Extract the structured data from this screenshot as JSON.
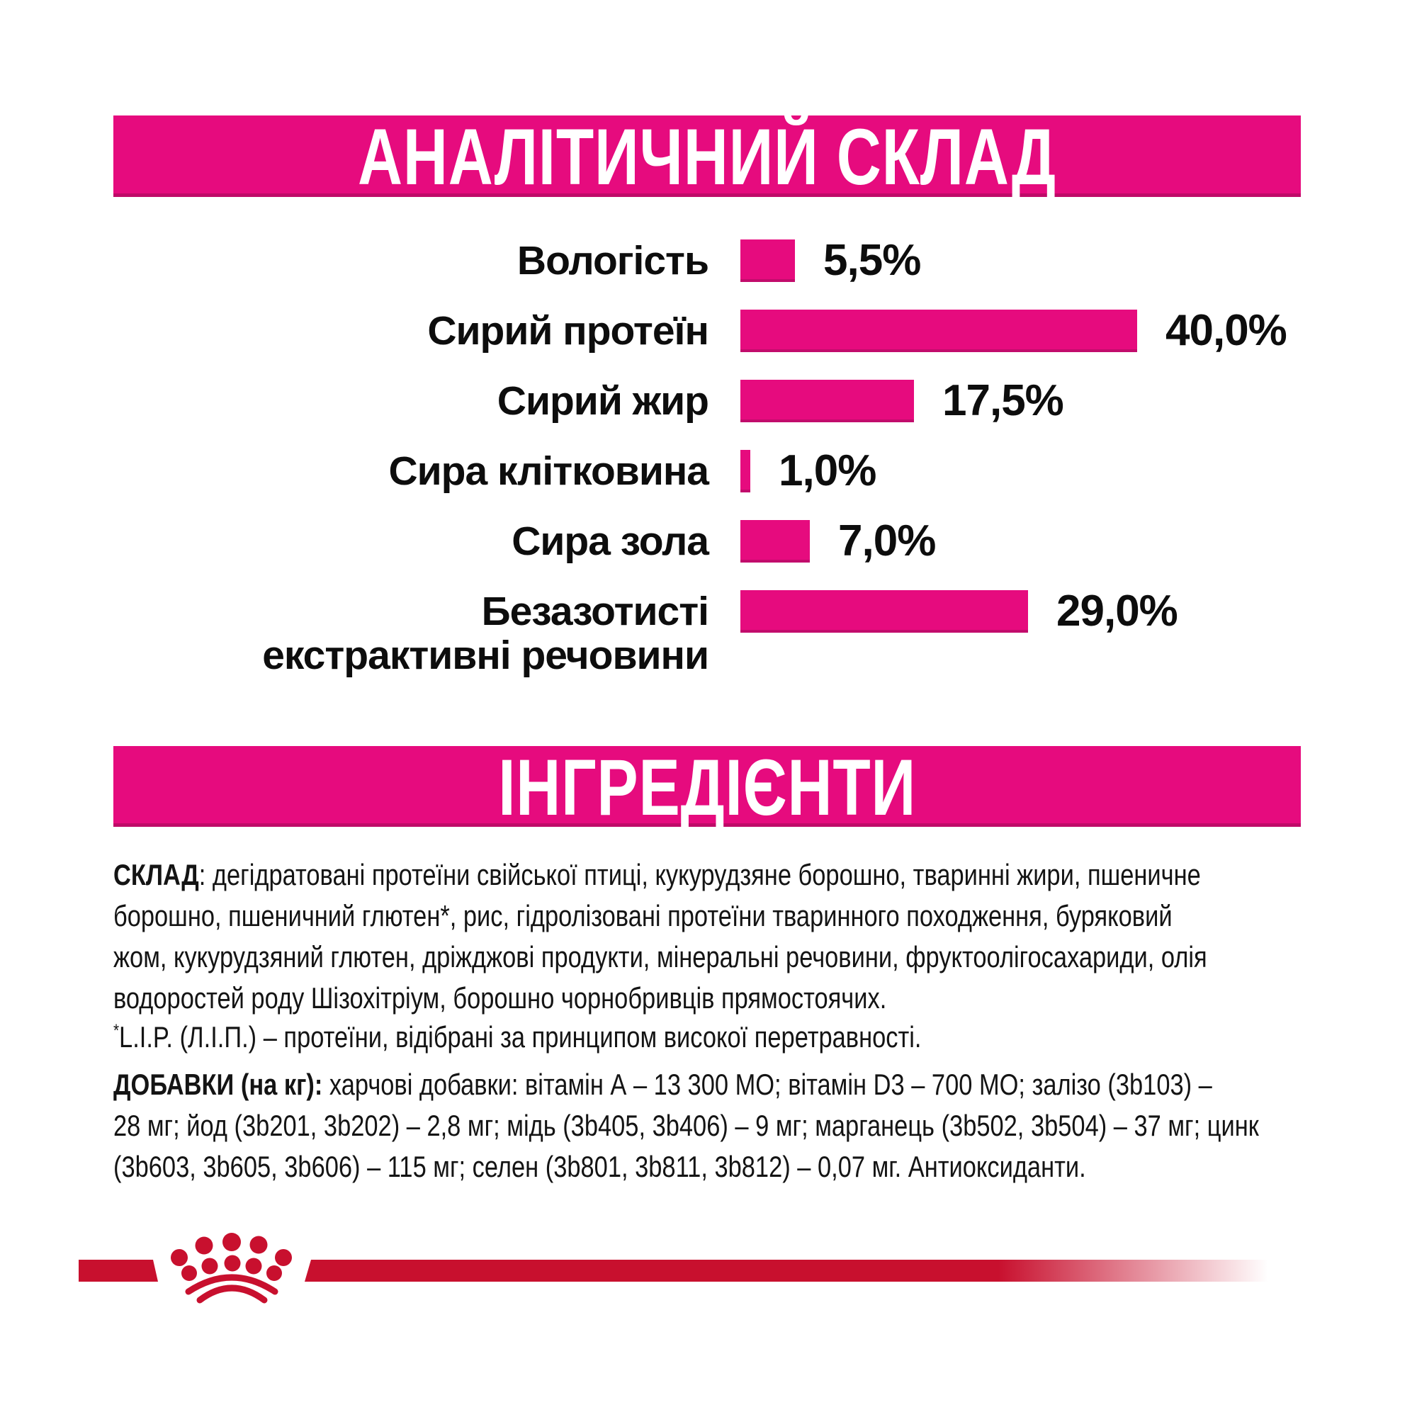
{
  "colors": {
    "accent_pink": "#E60B7E",
    "accent_pink_dark": "#BF0A68",
    "brand_red": "#C8102E",
    "text_black": "#0d0d0d",
    "background": "#ffffff"
  },
  "chart_data": {
    "type": "bar",
    "orientation": "horizontal",
    "title": "АНАЛІТИЧНИЙ СКЛАД",
    "categories": [
      "Вологість",
      "Сирий протеїн",
      "Сирий жир",
      "Сира клітковина",
      "Сира зола",
      "Безазотисті екстрактивні речовини"
    ],
    "values": [
      5.5,
      40.0,
      17.5,
      1.0,
      7.0,
      29.0
    ],
    "value_labels": [
      "5,5%",
      "40,0%",
      "17,5%",
      "1,0%",
      "7,0%",
      "29,0%"
    ],
    "xlim": [
      0,
      45
    ],
    "grid": false,
    "legend": "none",
    "bar_color": "#E60B7E",
    "rows": [
      {
        "label": "Вологість",
        "label2": "",
        "value": 5.5,
        "value_label": "5,5%"
      },
      {
        "label": "Сирий протеїн",
        "label2": "",
        "value": 40.0,
        "value_label": "40,0%"
      },
      {
        "label": "Сирий жир",
        "label2": "",
        "value": 17.5,
        "value_label": "17,5%"
      },
      {
        "label": "Сира клітковина",
        "label2": "",
        "value": 1.0,
        "value_label": "1,0%"
      },
      {
        "label": "Сира зола",
        "label2": "",
        "value": 7.0,
        "value_label": "7,0%"
      },
      {
        "label": "Безазотисті",
        "label2": "екстрактивні речовини",
        "value": 29.0,
        "value_label": "29,0%"
      }
    ]
  },
  "ingredients": {
    "header": "ІНГРЕДІЄНТИ",
    "sklad": {
      "lines": [
        {
          "bold": "СКЛАД",
          "rest": ": дегідратовані протеїни свійської птиці, кукурудзяне борошно, тваринні жири, пшеничне"
        },
        {
          "rest": "борошно, пшеничний глютен*, рис, гідролізовані протеїни тваринного походження, буряковий"
        },
        {
          "rest": "жом, кукурудзяний глютен, дріжджові продукти, мінеральні речовини, фруктоолігосахариди, олія"
        },
        {
          "rest": "водоростей роду Шізохітріум, борошно чорнобривців прямостоячих."
        }
      ]
    },
    "lip": {
      "lines": [
        {
          "sup": "*",
          "rest": "L.I.P. (Л.І.П.) – протеїни, відібрані за принципом високої перетравності."
        }
      ]
    },
    "dobavky": {
      "lines": [
        {
          "bold": "ДОБАВКИ (на кг):",
          "rest": " харчові добавки: вітамін А – 13 300 МО; вітамін D3 – 700 МО; залізо (3b103) –"
        },
        {
          "rest": "28 мг; йод (3b201, 3b202) – 2,8 мг; мідь (3b405, 3b406) – 9 мг; марганець (3b502, 3b504) – 37 мг; цинк"
        },
        {
          "rest": "(3b603, 3b605, 3b606) – 115 мг; селен (3b801, 3b811, 3b812) – 0,07 мг. Антиоксиданти."
        }
      ]
    }
  },
  "footer": {
    "logo": "royal-canin-crown-paw-logo"
  }
}
